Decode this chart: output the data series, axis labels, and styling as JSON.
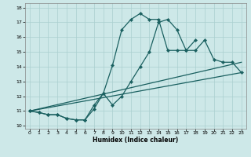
{
  "title": "",
  "xlabel": "Humidex (Indice chaleur)",
  "xlim": [
    -0.5,
    23.5
  ],
  "ylim": [
    9.8,
    18.3
  ],
  "xticks": [
    0,
    1,
    2,
    3,
    4,
    5,
    6,
    7,
    8,
    9,
    10,
    11,
    12,
    13,
    14,
    15,
    16,
    17,
    18,
    19,
    20,
    21,
    22,
    23
  ],
  "yticks": [
    10,
    11,
    12,
    13,
    14,
    15,
    16,
    17,
    18
  ],
  "background_color": "#cde8e8",
  "grid_color": "#aacfcf",
  "line_color": "#1a6060",
  "line1_x": [
    0,
    1,
    2,
    3,
    4,
    5,
    6,
    7,
    8,
    9,
    10,
    11,
    12,
    13,
    14,
    15,
    16,
    17,
    18,
    19,
    20,
    21,
    22,
    23
  ],
  "line1_y": [
    11.0,
    10.9,
    10.75,
    10.75,
    10.5,
    10.4,
    10.4,
    11.4,
    12.2,
    11.4,
    12.0,
    13.0,
    14.0,
    15.0,
    17.0,
    17.2,
    16.5,
    15.1,
    15.1,
    15.8,
    14.5,
    14.3,
    14.3,
    13.6
  ],
  "line2_x": [
    0,
    1,
    2,
    3,
    4,
    5,
    6,
    7,
    8,
    9,
    10,
    11,
    12,
    13,
    14,
    15,
    16,
    17,
    18
  ],
  "line2_y": [
    11.0,
    10.9,
    10.75,
    10.75,
    10.5,
    10.4,
    10.4,
    11.15,
    12.2,
    14.1,
    16.5,
    17.2,
    17.6,
    17.2,
    17.2,
    15.1,
    15.1,
    15.1,
    15.8
  ],
  "line3_x": [
    0,
    23
  ],
  "line3_y": [
    11.0,
    13.6
  ],
  "line4_x": [
    0,
    23
  ],
  "line4_y": [
    11.0,
    14.3
  ],
  "marker": "D",
  "markersize": 2.2,
  "linewidth": 0.9
}
